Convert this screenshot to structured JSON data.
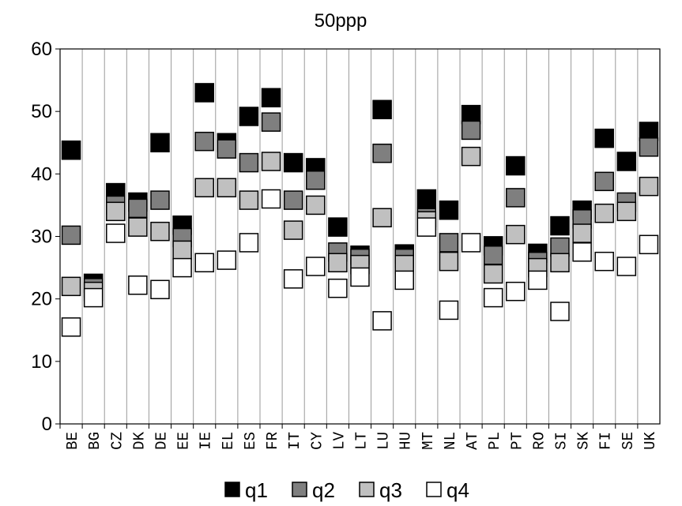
{
  "chart_data": {
    "type": "scatter",
    "title": "50ppp",
    "xlabel": "",
    "ylabel": "",
    "ylim": [
      0,
      60
    ],
    "yticks": [
      0,
      10,
      20,
      30,
      40,
      50,
      60
    ],
    "grid": "vertical",
    "legend_position": "bottom",
    "categories": [
      "BE",
      "BG",
      "CZ",
      "DK",
      "DE",
      "EE",
      "IE",
      "EL",
      "ES",
      "FR",
      "IT",
      "CY",
      "LV",
      "LT",
      "LU",
      "HU",
      "MT",
      "NL",
      "AT",
      "PL",
      "PT",
      "RO",
      "SI",
      "SK",
      "FI",
      "SE",
      "UK"
    ],
    "series": [
      {
        "name": "q1",
        "color": "#000000",
        "values": [
          43.8,
          22.5,
          37.0,
          35.5,
          45.0,
          31.8,
          53.0,
          45.0,
          49.2,
          52.2,
          41.8,
          41.0,
          31.5,
          27.0,
          50.3,
          27.2,
          36.0,
          34.2,
          49.5,
          28.5,
          41.3,
          27.3,
          31.7,
          34.2,
          45.7,
          42.0,
          46.8
        ]
      },
      {
        "name": "q2",
        "color": "#7f7f7f",
        "values": [
          30.2,
          21.8,
          35.0,
          34.5,
          35.8,
          29.8,
          45.2,
          44.0,
          41.8,
          48.3,
          35.8,
          39.0,
          27.5,
          26.5,
          43.3,
          26.5,
          33.0,
          29.0,
          47.0,
          27.0,
          36.2,
          26.0,
          28.3,
          32.8,
          38.8,
          35.5,
          44.3
        ]
      },
      {
        "name": "q3",
        "color": "#c0c0c0",
        "values": [
          22.0,
          21.2,
          34.0,
          31.5,
          30.8,
          27.8,
          37.8,
          37.8,
          35.8,
          42.0,
          31.0,
          35.0,
          25.8,
          25.5,
          33.0,
          25.5,
          32.5,
          26.0,
          42.8,
          24.0,
          30.3,
          25.0,
          25.8,
          30.5,
          33.7,
          34.0,
          38.0
        ]
      },
      {
        "name": "q4",
        "color": "#ffffff",
        "values": [
          15.5,
          20.2,
          30.5,
          22.2,
          21.5,
          25.0,
          25.8,
          26.2,
          29.0,
          36.0,
          23.2,
          25.2,
          21.7,
          23.5,
          16.5,
          23.0,
          31.5,
          18.2,
          29.0,
          20.2,
          21.2,
          23.0,
          18.0,
          27.5,
          26.0,
          25.2,
          28.7
        ]
      }
    ]
  }
}
